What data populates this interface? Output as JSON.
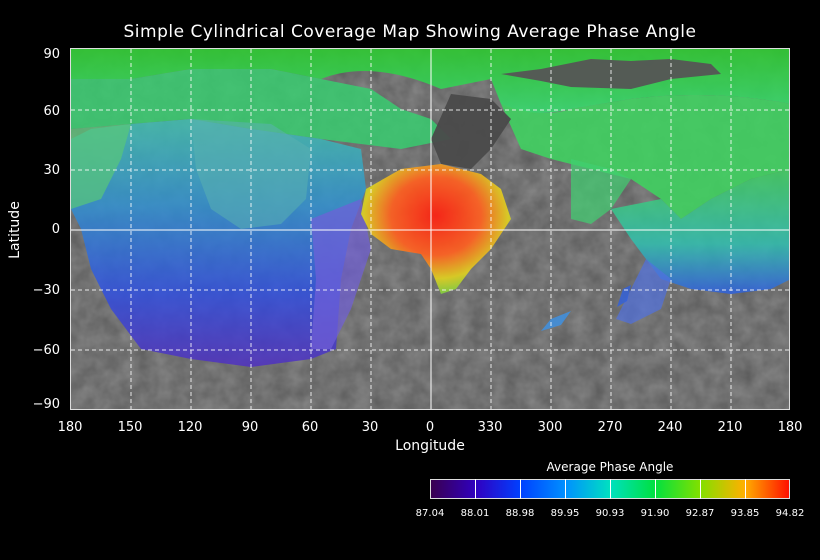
{
  "title": "Simple Cylindrical Coverage Map Showing Average Phase Angle",
  "axes": {
    "xlabel": "Longitude",
    "ylabel": "Latitude",
    "xticks": [
      "180",
      "150",
      "120",
      "90",
      "60",
      "30",
      "0",
      "330",
      "300",
      "270",
      "240",
      "210",
      "180"
    ],
    "yticks": [
      "90",
      "60",
      "30",
      "0",
      "−30",
      "−60",
      "−90"
    ]
  },
  "colorbar": {
    "title": "Average Phase Angle",
    "labels": [
      "87.04",
      "88.01",
      "88.98",
      "89.95",
      "90.93",
      "91.90",
      "92.87",
      "93.85",
      "94.82"
    ],
    "colors": [
      "#3a0050",
      "#3000c0",
      "#0040ff",
      "#0090ff",
      "#00e0c0",
      "#00e040",
      "#80e000",
      "#ffb000",
      "#ff1000"
    ]
  }
}
